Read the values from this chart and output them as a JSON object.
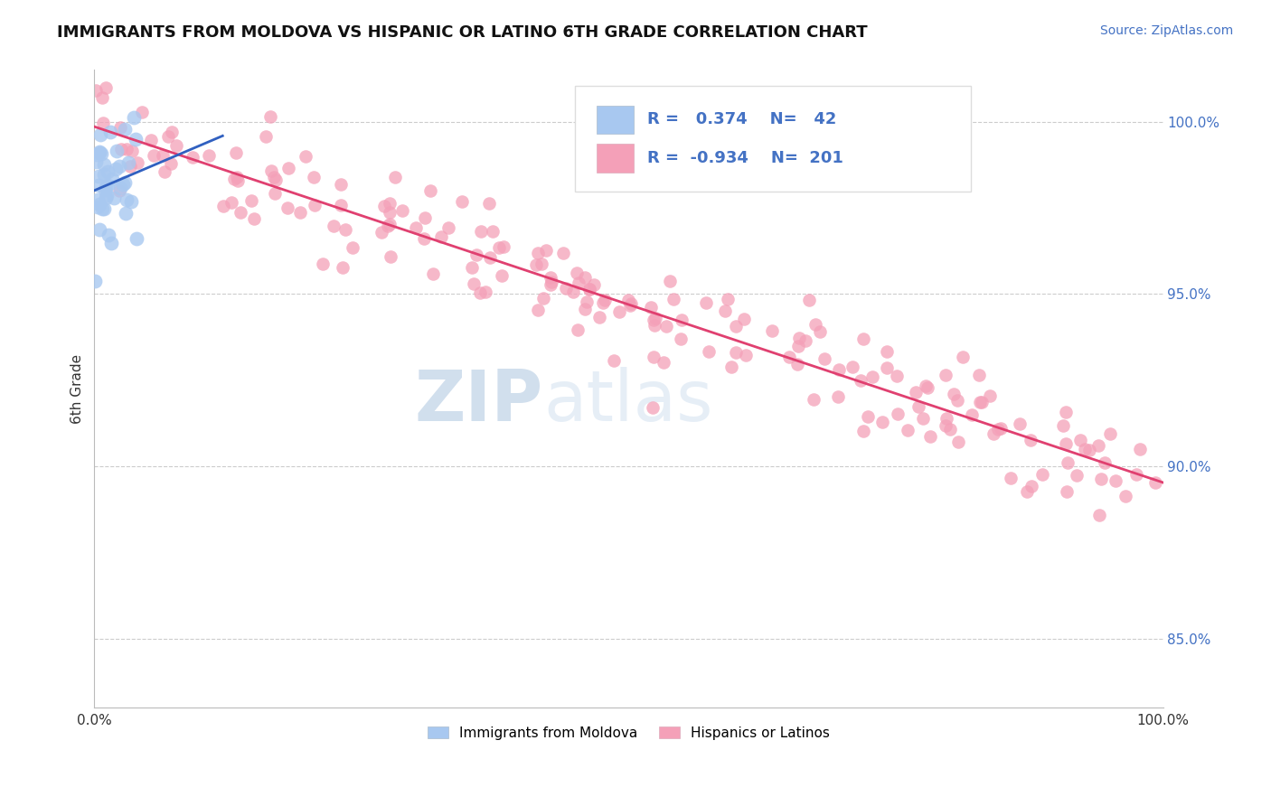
{
  "title": "IMMIGRANTS FROM MOLDOVA VS HISPANIC OR LATINO 6TH GRADE CORRELATION CHART",
  "source": "Source: ZipAtlas.com",
  "ylabel": "6th Grade",
  "legend_label1": "Immigrants from Moldova",
  "legend_label2": "Hispanics or Latinos",
  "R1": 0.374,
  "N1": 42,
  "R2": -0.934,
  "N2": 201,
  "blue_color": "#a8c8f0",
  "pink_color": "#f4a0b8",
  "blue_line_color": "#3060c0",
  "pink_line_color": "#e04070",
  "watermark_zip": "ZIP",
  "watermark_atlas": "atlas",
  "background_color": "#ffffff",
  "xlim": [
    0,
    1.0
  ],
  "ylim": [
    83.0,
    101.5
  ],
  "y_ticks": [
    85.0,
    90.0,
    95.0,
    100.0
  ],
  "y_tick_labels": [
    "85.0%",
    "90.0%",
    "95.0%",
    "100.0%"
  ],
  "seed_blue": 42,
  "seed_pink": 7
}
